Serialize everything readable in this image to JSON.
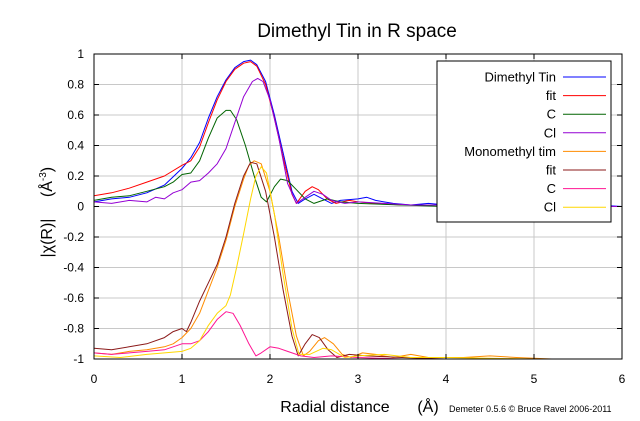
{
  "chart_data": {
    "type": "line",
    "title": "Dimethyl Tin in R space",
    "xlabel": "Radial distance",
    "xlabel_unit": "(Å)",
    "ylabel": "|χ(R)|",
    "ylabel_unit": "(Å",
    "ylabel_unit_exp": "-3",
    "ylabel_unit_close": ")",
    "credit": "Demeter 0.5.6 © Bruce Ravel 2006-2011",
    "xlim": [
      0,
      6
    ],
    "ylim": [
      -1,
      1
    ],
    "grid": true,
    "legend_position": "top-right",
    "x_ticks": [
      "0",
      "1",
      "2",
      "3",
      "4",
      "5",
      "6"
    ],
    "y_ticks": [
      "-1",
      "-0.8",
      "-0.6",
      "-0.4",
      "-0.2",
      "0",
      "0.2",
      "0.4",
      "0.6",
      "0.8",
      "1"
    ],
    "x_tick_values": [
      0,
      1,
      2,
      3,
      4,
      5,
      6
    ],
    "y_tick_values": [
      -1,
      -0.8,
      -0.6,
      -0.4,
      -0.2,
      0,
      0.2,
      0.4,
      0.6,
      0.8,
      1
    ],
    "series": [
      {
        "name": "Dimethyl Tin",
        "color": "#0000ff",
        "points": [
          [
            0,
            0.03
          ],
          [
            0.2,
            0.05
          ],
          [
            0.4,
            0.06
          ],
          [
            0.6,
            0.09
          ],
          [
            0.8,
            0.14
          ],
          [
            1.0,
            0.25
          ],
          [
            1.1,
            0.32
          ],
          [
            1.2,
            0.42
          ],
          [
            1.3,
            0.58
          ],
          [
            1.4,
            0.72
          ],
          [
            1.5,
            0.83
          ],
          [
            1.6,
            0.91
          ],
          [
            1.7,
            0.95
          ],
          [
            1.78,
            0.96
          ],
          [
            1.85,
            0.93
          ],
          [
            1.95,
            0.82
          ],
          [
            2.05,
            0.6
          ],
          [
            2.15,
            0.35
          ],
          [
            2.25,
            0.1
          ],
          [
            2.32,
            0.02
          ],
          [
            2.4,
            0.05
          ],
          [
            2.5,
            0.08
          ],
          [
            2.6,
            0.05
          ],
          [
            2.7,
            0.02
          ],
          [
            2.8,
            0.04
          ],
          [
            3.0,
            0.05
          ],
          [
            3.1,
            0.06
          ],
          [
            3.2,
            0.04
          ],
          [
            3.4,
            0.02
          ],
          [
            3.6,
            0.01
          ],
          [
            3.8,
            0.02
          ],
          [
            4.0,
            0.01
          ],
          [
            4.3,
            0.0
          ],
          [
            4.5,
            0.02
          ],
          [
            4.6,
            0.04
          ],
          [
            4.8,
            0.03
          ],
          [
            5.0,
            0.01
          ],
          [
            5.3,
            0.02
          ],
          [
            5.5,
            0.0
          ],
          [
            5.7,
            0.01
          ],
          [
            6.0,
            0.0
          ]
        ]
      },
      {
        "name": "fit",
        "color": "#ff0000",
        "points": [
          [
            0,
            0.07
          ],
          [
            0.2,
            0.09
          ],
          [
            0.4,
            0.12
          ],
          [
            0.6,
            0.16
          ],
          [
            0.8,
            0.2
          ],
          [
            1.0,
            0.27
          ],
          [
            1.1,
            0.3
          ],
          [
            1.2,
            0.39
          ],
          [
            1.3,
            0.55
          ],
          [
            1.4,
            0.7
          ],
          [
            1.5,
            0.82
          ],
          [
            1.6,
            0.9
          ],
          [
            1.7,
            0.94
          ],
          [
            1.78,
            0.95
          ],
          [
            1.85,
            0.92
          ],
          [
            1.95,
            0.8
          ],
          [
            2.05,
            0.58
          ],
          [
            2.15,
            0.32
          ],
          [
            2.25,
            0.08
          ],
          [
            2.3,
            0.02
          ],
          [
            2.4,
            0.1
          ],
          [
            2.48,
            0.13
          ],
          [
            2.55,
            0.11
          ],
          [
            2.65,
            0.05
          ],
          [
            2.75,
            0.02
          ],
          [
            2.9,
            0.04
          ],
          [
            3.0,
            0.03
          ],
          [
            3.2,
            0.02
          ],
          [
            3.5,
            0.01
          ],
          [
            4.0,
            0.01
          ],
          [
            5.0,
            0.0
          ],
          [
            6.0,
            0.0
          ]
        ]
      },
      {
        "name": "C",
        "color": "#006400",
        "points": [
          [
            0,
            0.04
          ],
          [
            0.2,
            0.06
          ],
          [
            0.4,
            0.07
          ],
          [
            0.6,
            0.1
          ],
          [
            0.8,
            0.13
          ],
          [
            0.9,
            0.16
          ],
          [
            1.0,
            0.21
          ],
          [
            1.1,
            0.22
          ],
          [
            1.2,
            0.3
          ],
          [
            1.3,
            0.45
          ],
          [
            1.4,
            0.58
          ],
          [
            1.5,
            0.63
          ],
          [
            1.55,
            0.63
          ],
          [
            1.62,
            0.57
          ],
          [
            1.72,
            0.4
          ],
          [
            1.82,
            0.2
          ],
          [
            1.9,
            0.06
          ],
          [
            1.96,
            0.03
          ],
          [
            2.05,
            0.13
          ],
          [
            2.12,
            0.18
          ],
          [
            2.2,
            0.17
          ],
          [
            2.3,
            0.11
          ],
          [
            2.4,
            0.05
          ],
          [
            2.5,
            0.02
          ],
          [
            2.65,
            0.05
          ],
          [
            2.8,
            0.03
          ],
          [
            3.0,
            0.02
          ],
          [
            3.5,
            0.01
          ],
          [
            4.0,
            0.0
          ],
          [
            6.0,
            0.0
          ]
        ]
      },
      {
        "name": "Cl",
        "color": "#9400d3",
        "points": [
          [
            0,
            0.03
          ],
          [
            0.2,
            0.02
          ],
          [
            0.4,
            0.04
          ],
          [
            0.6,
            0.03
          ],
          [
            0.7,
            0.06
          ],
          [
            0.8,
            0.05
          ],
          [
            0.9,
            0.09
          ],
          [
            1.0,
            0.11
          ],
          [
            1.1,
            0.16
          ],
          [
            1.2,
            0.17
          ],
          [
            1.3,
            0.22
          ],
          [
            1.4,
            0.28
          ],
          [
            1.5,
            0.38
          ],
          [
            1.6,
            0.55
          ],
          [
            1.7,
            0.72
          ],
          [
            1.8,
            0.82
          ],
          [
            1.86,
            0.84
          ],
          [
            1.92,
            0.82
          ],
          [
            2.0,
            0.7
          ],
          [
            2.1,
            0.45
          ],
          [
            2.2,
            0.15
          ],
          [
            2.3,
            0.02
          ],
          [
            2.4,
            0.06
          ],
          [
            2.5,
            0.1
          ],
          [
            2.6,
            0.08
          ],
          [
            2.7,
            0.04
          ],
          [
            2.85,
            0.02
          ],
          [
            3.0,
            0.03
          ],
          [
            3.3,
            0.02
          ],
          [
            3.6,
            0.01
          ],
          [
            4.0,
            0.01
          ],
          [
            5.0,
            0.0
          ],
          [
            6.0,
            0.0
          ]
        ]
      },
      {
        "name": "Monomethyl tim",
        "color": "#ff8c00",
        "points": [
          [
            0,
            -0.96
          ],
          [
            0.2,
            -0.97
          ],
          [
            0.4,
            -0.95
          ],
          [
            0.6,
            -0.94
          ],
          [
            0.8,
            -0.92
          ],
          [
            0.9,
            -0.9
          ],
          [
            1.0,
            -0.86
          ],
          [
            1.1,
            -0.8
          ],
          [
            1.2,
            -0.7
          ],
          [
            1.3,
            -0.55
          ],
          [
            1.4,
            -0.4
          ],
          [
            1.5,
            -0.22
          ],
          [
            1.6,
            0.0
          ],
          [
            1.7,
            0.18
          ],
          [
            1.76,
            0.27
          ],
          [
            1.82,
            0.3
          ],
          [
            1.9,
            0.28
          ],
          [
            2.0,
            0.1
          ],
          [
            2.1,
            -0.2
          ],
          [
            2.2,
            -0.55
          ],
          [
            2.3,
            -0.85
          ],
          [
            2.38,
            -0.98
          ],
          [
            2.45,
            -0.95
          ],
          [
            2.55,
            -0.88
          ],
          [
            2.62,
            -0.86
          ],
          [
            2.72,
            -0.9
          ],
          [
            2.82,
            -0.97
          ],
          [
            2.92,
            -0.99
          ],
          [
            3.05,
            -0.96
          ],
          [
            3.2,
            -0.97
          ],
          [
            3.4,
            -0.99
          ],
          [
            3.6,
            -0.97
          ],
          [
            3.8,
            -0.99
          ],
          [
            4.2,
            -0.99
          ],
          [
            4.5,
            -0.98
          ],
          [
            4.8,
            -0.99
          ],
          [
            5.2,
            -1.0
          ],
          [
            6.0,
            -1.0
          ]
        ]
      },
      {
        "name": "fit",
        "color": "#8b1a1a",
        "points": [
          [
            0,
            -0.93
          ],
          [
            0.2,
            -0.94
          ],
          [
            0.4,
            -0.92
          ],
          [
            0.6,
            -0.9
          ],
          [
            0.8,
            -0.86
          ],
          [
            0.9,
            -0.82
          ],
          [
            1.0,
            -0.8
          ],
          [
            1.05,
            -0.82
          ],
          [
            1.1,
            -0.76
          ],
          [
            1.2,
            -0.62
          ],
          [
            1.3,
            -0.5
          ],
          [
            1.4,
            -0.38
          ],
          [
            1.5,
            -0.2
          ],
          [
            1.6,
            0.02
          ],
          [
            1.7,
            0.2
          ],
          [
            1.78,
            0.29
          ],
          [
            1.85,
            0.28
          ],
          [
            1.95,
            0.1
          ],
          [
            2.05,
            -0.2
          ],
          [
            2.15,
            -0.55
          ],
          [
            2.25,
            -0.85
          ],
          [
            2.32,
            -0.98
          ],
          [
            2.4,
            -0.9
          ],
          [
            2.48,
            -0.84
          ],
          [
            2.56,
            -0.86
          ],
          [
            2.66,
            -0.94
          ],
          [
            2.76,
            -0.99
          ],
          [
            2.9,
            -0.97
          ],
          [
            3.1,
            -0.98
          ],
          [
            3.5,
            -0.99
          ],
          [
            4.0,
            -1.0
          ],
          [
            6.0,
            -1.0
          ]
        ]
      },
      {
        "name": "C",
        "color": "#ff1493",
        "points": [
          [
            0,
            -0.96
          ],
          [
            0.2,
            -0.97
          ],
          [
            0.4,
            -0.96
          ],
          [
            0.6,
            -0.95
          ],
          [
            0.8,
            -0.94
          ],
          [
            0.9,
            -0.92
          ],
          [
            1.0,
            -0.9
          ],
          [
            1.1,
            -0.9
          ],
          [
            1.2,
            -0.88
          ],
          [
            1.3,
            -0.82
          ],
          [
            1.4,
            -0.74
          ],
          [
            1.5,
            -0.69
          ],
          [
            1.58,
            -0.7
          ],
          [
            1.66,
            -0.78
          ],
          [
            1.76,
            -0.9
          ],
          [
            1.84,
            -0.98
          ],
          [
            1.9,
            -0.96
          ],
          [
            2.0,
            -0.92
          ],
          [
            2.1,
            -0.93
          ],
          [
            2.2,
            -0.95
          ],
          [
            2.35,
            -0.98
          ],
          [
            2.5,
            -0.99
          ],
          [
            2.7,
            -0.98
          ],
          [
            3.0,
            -0.99
          ],
          [
            3.5,
            -1.0
          ],
          [
            6.0,
            -1.0
          ]
        ]
      },
      {
        "name": "Cl",
        "color": "#ffd700",
        "points": [
          [
            0,
            -0.98
          ],
          [
            0.3,
            -0.99
          ],
          [
            0.6,
            -0.97
          ],
          [
            0.8,
            -0.96
          ],
          [
            1.0,
            -0.95
          ],
          [
            1.1,
            -0.93
          ],
          [
            1.2,
            -0.88
          ],
          [
            1.3,
            -0.78
          ],
          [
            1.4,
            -0.7
          ],
          [
            1.5,
            -0.65
          ],
          [
            1.55,
            -0.58
          ],
          [
            1.62,
            -0.4
          ],
          [
            1.7,
            -0.18
          ],
          [
            1.78,
            0.05
          ],
          [
            1.84,
            0.2
          ],
          [
            1.9,
            0.26
          ],
          [
            1.96,
            0.22
          ],
          [
            2.05,
            -0.05
          ],
          [
            2.15,
            -0.45
          ],
          [
            2.25,
            -0.8
          ],
          [
            2.33,
            -0.97
          ],
          [
            2.45,
            -0.97
          ],
          [
            2.6,
            -0.93
          ],
          [
            2.7,
            -0.94
          ],
          [
            2.85,
            -0.99
          ],
          [
            3.0,
            -0.98
          ],
          [
            3.3,
            -0.97
          ],
          [
            3.6,
            -0.99
          ],
          [
            4.0,
            -0.99
          ],
          [
            5.0,
            -1.0
          ],
          [
            6.0,
            -1.0
          ]
        ]
      }
    ]
  }
}
